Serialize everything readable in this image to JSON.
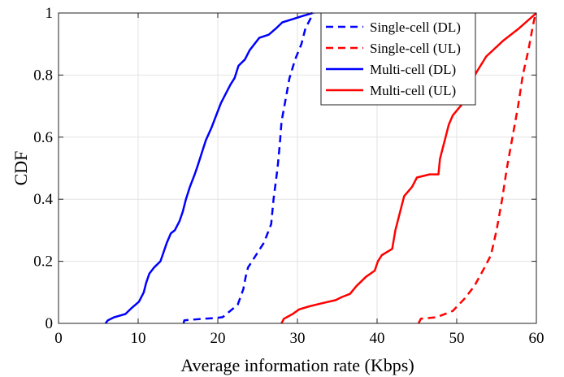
{
  "chart_data": {
    "type": "line",
    "xlabel": "Average information rate (Kbps)",
    "ylabel": "CDF",
    "xlim": [
      0,
      60
    ],
    "ylim": [
      0,
      1
    ],
    "grid": true,
    "legend_position": "top-right",
    "x_ticks": [
      "0",
      "10",
      "20",
      "30",
      "40",
      "50",
      "60"
    ],
    "y_ticks": [
      "0",
      "0.2",
      "0.4",
      "0.6",
      "0.8",
      "1"
    ],
    "series": [
      {
        "name": "Single-cell (DL)",
        "color": "#0000ff",
        "style": "dashed",
        "points": [
          [
            15.7,
            0.0
          ],
          [
            15.8,
            0.01
          ],
          [
            18.2,
            0.015
          ],
          [
            19.6,
            0.017
          ],
          [
            20.6,
            0.02
          ],
          [
            22.5,
            0.06
          ],
          [
            23.2,
            0.11
          ],
          [
            23.5,
            0.15
          ],
          [
            23.8,
            0.18
          ],
          [
            24.8,
            0.22
          ],
          [
            25.8,
            0.26
          ],
          [
            26.7,
            0.32
          ],
          [
            27.0,
            0.4
          ],
          [
            27.5,
            0.5
          ],
          [
            27.8,
            0.58
          ],
          [
            28.0,
            0.65
          ],
          [
            28.5,
            0.72
          ],
          [
            29.0,
            0.79
          ],
          [
            29.7,
            0.85
          ],
          [
            30.5,
            0.9
          ],
          [
            31.0,
            0.95
          ],
          [
            32.0,
            1.0
          ]
        ]
      },
      {
        "name": "Single-cell (UL)",
        "color": "#ff0000",
        "style": "dashed",
        "points": [
          [
            45.2,
            0.0
          ],
          [
            45.5,
            0.015
          ],
          [
            47.5,
            0.02
          ],
          [
            49.5,
            0.04
          ],
          [
            51.0,
            0.08
          ],
          [
            52.2,
            0.12
          ],
          [
            53.5,
            0.18
          ],
          [
            54.3,
            0.22
          ],
          [
            55.0,
            0.3
          ],
          [
            55.7,
            0.4
          ],
          [
            56.3,
            0.5
          ],
          [
            57.0,
            0.6
          ],
          [
            57.7,
            0.7
          ],
          [
            58.3,
            0.8
          ],
          [
            59.0,
            0.88
          ],
          [
            59.5,
            0.95
          ],
          [
            59.9,
            1.0
          ]
        ]
      },
      {
        "name": "Multi-cell (DL)",
        "color": "#0000ff",
        "style": "solid",
        "points": [
          [
            5.9,
            0.0
          ],
          [
            6.2,
            0.01
          ],
          [
            7.0,
            0.02
          ],
          [
            8.4,
            0.03
          ],
          [
            9.2,
            0.05
          ],
          [
            10.1,
            0.07
          ],
          [
            10.7,
            0.1
          ],
          [
            11.0,
            0.13
          ],
          [
            11.4,
            0.16
          ],
          [
            12.0,
            0.18
          ],
          [
            12.8,
            0.2
          ],
          [
            13.2,
            0.23
          ],
          [
            13.6,
            0.26
          ],
          [
            14.1,
            0.29
          ],
          [
            14.6,
            0.3
          ],
          [
            15.2,
            0.33
          ],
          [
            15.6,
            0.36
          ],
          [
            16.0,
            0.4
          ],
          [
            16.5,
            0.44
          ],
          [
            17.1,
            0.48
          ],
          [
            17.5,
            0.51
          ],
          [
            18.0,
            0.55
          ],
          [
            18.5,
            0.59
          ],
          [
            19.2,
            0.63
          ],
          [
            19.8,
            0.67
          ],
          [
            20.4,
            0.71
          ],
          [
            21.0,
            0.74
          ],
          [
            21.6,
            0.77
          ],
          [
            22.1,
            0.79
          ],
          [
            22.6,
            0.83
          ],
          [
            23.4,
            0.85
          ],
          [
            24.0,
            0.88
          ],
          [
            25.2,
            0.92
          ],
          [
            26.4,
            0.93
          ],
          [
            27.3,
            0.95
          ],
          [
            28.1,
            0.97
          ],
          [
            29.4,
            0.98
          ],
          [
            30.6,
            0.99
          ],
          [
            31.9,
            1.0
          ]
        ]
      },
      {
        "name": "Multi-cell (UL)",
        "color": "#ff0000",
        "style": "solid",
        "points": [
          [
            28.0,
            0.0
          ],
          [
            28.3,
            0.015
          ],
          [
            29.4,
            0.03
          ],
          [
            30.2,
            0.045
          ],
          [
            31.5,
            0.055
          ],
          [
            33.1,
            0.065
          ],
          [
            34.8,
            0.075
          ],
          [
            35.6,
            0.085
          ],
          [
            36.6,
            0.095
          ],
          [
            37.4,
            0.12
          ],
          [
            38.6,
            0.15
          ],
          [
            39.7,
            0.17
          ],
          [
            40.1,
            0.2
          ],
          [
            40.6,
            0.22
          ],
          [
            41.9,
            0.24
          ],
          [
            42.3,
            0.3
          ],
          [
            42.8,
            0.35
          ],
          [
            43.4,
            0.41
          ],
          [
            44.4,
            0.44
          ],
          [
            45.0,
            0.47
          ],
          [
            46.6,
            0.48
          ],
          [
            47.7,
            0.48
          ],
          [
            47.9,
            0.53
          ],
          [
            48.3,
            0.57
          ],
          [
            48.6,
            0.6
          ],
          [
            49.0,
            0.64
          ],
          [
            49.5,
            0.67
          ],
          [
            50.8,
            0.71
          ],
          [
            51.4,
            0.76
          ],
          [
            52.5,
            0.81
          ],
          [
            53.7,
            0.86
          ],
          [
            55.8,
            0.91
          ],
          [
            57.8,
            0.95
          ],
          [
            60.0,
            1.0
          ]
        ]
      }
    ]
  }
}
